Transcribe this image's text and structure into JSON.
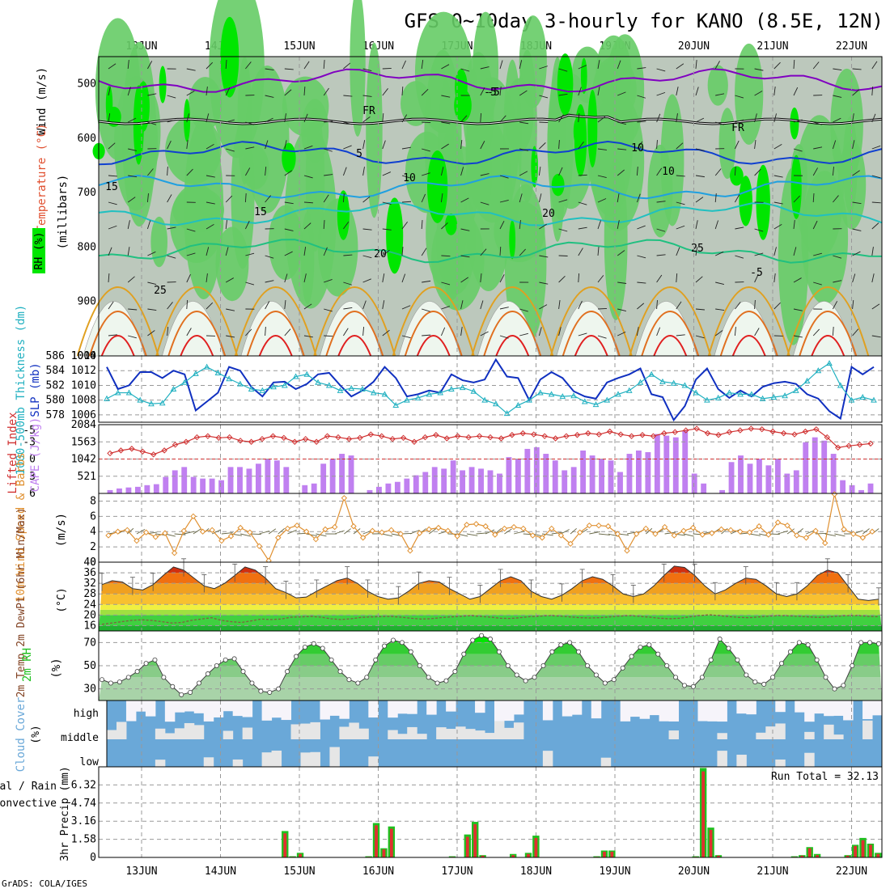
{
  "title": "GFS 0~10day 3-hourly for KANO (8.5E, 12N)",
  "footer": "GrADS: COLA/IGES",
  "days": [
    "13JUN",
    "14JUN",
    "15JUN",
    "16JUN",
    "17JUN",
    "18JUN",
    "19JUN",
    "20JUN",
    "21JUN",
    "22JUN"
  ],
  "colors": {
    "rh_dark": "#00e600",
    "rh_mid": "#66cc66",
    "rh_light": "#a8d3a8",
    "grey": "#bcc8bc",
    "pale": "#eef6ee",
    "purple": "#8000c0",
    "blue": "#1040d0",
    "lightblue": "#20a0e0",
    "teal": "#20c0c0",
    "green": "#20c080",
    "orange": "#e0a020",
    "darkorange": "#e07020",
    "red": "#e02020",
    "slp": "#1030c0",
    "thick": "#20b0c0",
    "li": "#d03030",
    "cape": "#c080f0",
    "wind": "#e09030",
    "cloud_blue": "#6aa8d8",
    "cloud_grey": "#e6e6e6",
    "cloud_white": "#f6f4fa",
    "precip_green": "#20c020",
    "precip_red": "#e03030"
  },
  "panels": {
    "profile": {
      "labels": {
        "wind": "Wind (m/s)",
        "temp": "Temperature (°C)",
        "rh": "RH (%)",
        "units": "(millibars)"
      },
      "contour_labels": [
        "-5",
        "FR",
        "FR",
        "-5",
        "5",
        "10",
        "10",
        "10",
        "15",
        "15",
        "20",
        "20",
        "25",
        "25",
        "-5"
      ]
    },
    "slp": {
      "label_left": "1000-500mb Thickness (dm)",
      "label_right": "SLP (mb)"
    },
    "cape": {
      "label_left": "Lifted Index",
      "label_right": "CAPE (J/kg)"
    },
    "wind10": {
      "label": "10m Wind Speed & Barbs",
      "units": "(m/s)"
    },
    "temp2m": {
      "label": "2m Temp 2m DewPt (6hr Min/Max)",
      "units": "(°C)"
    },
    "rh2m": {
      "label": "2m RH",
      "units": "(%)"
    },
    "cloud": {
      "label": "Cloud Cover",
      "units": "(%)",
      "levels": [
        "high",
        "middle",
        "low"
      ]
    },
    "precip": {
      "label_a": "Total / Rain",
      "label_b": "Convective",
      "ylabel": "3hr Precip (mm)",
      "run_total": "Run Total = 32.13"
    }
  },
  "chart_data": [
    {
      "type": "heatmap",
      "ylabel": "(millibars)",
      "y_ticks": [
        500,
        600,
        700,
        800,
        900,
        1000
      ],
      "ylim": [
        1000,
        450
      ],
      "x_categories": [
        "13JUN",
        "14JUN",
        "15JUN",
        "16JUN",
        "17JUN",
        "18JUN",
        "19JUN",
        "20JUN",
        "21JUN",
        "22JUN"
      ],
      "isotherm_labels_c": [
        -5,
        5,
        10,
        15,
        20,
        25
      ],
      "freezing_level_label": "FR"
    },
    {
      "type": "line",
      "series": [
        {
          "name": "SLP (mb)",
          "axis": "right",
          "ylim": [
            1005,
            1014
          ],
          "y_ticks": [
            1006,
            1008,
            1010,
            1012,
            1014
          ],
          "values": [
            1012.5,
            1009.5,
            1010,
            1011.8,
            1011.8,
            1011,
            1012,
            1011.5,
            1006.6,
            1007.8,
            1009,
            1012.5,
            1012,
            1009.8,
            1008.5,
            1010.4,
            1010.5,
            1009.5,
            1010.2,
            1011.5,
            1011.7,
            1010,
            1008.5,
            1009.3,
            1010.5,
            1012.5,
            1011,
            1008.5,
            1008.8,
            1009.3,
            1009,
            1011.5,
            1010.7,
            1010.4,
            1010.8,
            1013.5,
            1011.2,
            1011,
            1008,
            1010.8,
            1011.8,
            1011,
            1009.2,
            1008.5,
            1008.2,
            1010.4,
            1011,
            1011.5,
            1012.3,
            1008.8,
            1008.4,
            1005.3,
            1007.2,
            1010.8,
            1012.3,
            1009.5,
            1008.3,
            1009.3,
            1008.5,
            1009.8,
            1010.3,
            1010.5,
            1010.2,
            1008.8,
            1008.2,
            1006.5,
            1005.5,
            1012.5,
            1011.5,
            1012.5
          ]
        },
        {
          "name": "1000-500mb Thickness (dm)",
          "axis": "left",
          "ylim": [
            577,
            586
          ],
          "y_ticks": [
            578,
            580,
            582,
            584,
            586
          ],
          "values": [
            580.2,
            581,
            581,
            580,
            579.5,
            579.6,
            581.5,
            582.4,
            583.6,
            584.5,
            583.7,
            582.9,
            582.2,
            581.5,
            581.3,
            581.8,
            582,
            583.2,
            583.5,
            582.4,
            582,
            581.3,
            581.6,
            581.5,
            581,
            580.8,
            579.3,
            580,
            580.3,
            580.8,
            581,
            581.5,
            581.7,
            581.2,
            580,
            579.5,
            578.2,
            579.3,
            580,
            581,
            580.8,
            580.5,
            580.6,
            579.8,
            579.4,
            580,
            580.8,
            581.3,
            582.4,
            583.5,
            582.5,
            582.3,
            582,
            581,
            580,
            580.3,
            581,
            580.8,
            580.8,
            580.2,
            580.4,
            580.6,
            581.3,
            582.6,
            584,
            585,
            582,
            580,
            580.4,
            580
          ]
        }
      ]
    },
    {
      "type": "bar",
      "series": [
        {
          "name": "CAPE (J/kg)",
          "axis": "right",
          "ylim": [
            0,
            2084
          ],
          "y_ticks": [
            521,
            1042,
            1563,
            2084
          ],
          "values": [
            100,
            150,
            180,
            200,
            250,
            280,
            500,
            700,
            800,
            500,
            450,
            450,
            400,
            800,
            800,
            750,
            900,
            1050,
            1000,
            800,
            0,
            250,
            300,
            900,
            1050,
            1200,
            1150,
            0,
            100,
            200,
            300,
            350,
            450,
            550,
            650,
            800,
            750,
            1000,
            700,
            800,
            750,
            700,
            600,
            1100,
            1050,
            1350,
            1400,
            1200,
            1000,
            700,
            800,
            1300,
            1150,
            1050,
            1000,
            650,
            1200,
            1300,
            1250,
            1800,
            1750,
            1700,
            1900,
            600,
            300,
            0,
            100,
            950,
            1150,
            900,
            1050,
            850,
            1050,
            600,
            700,
            1550,
            1700,
            1600,
            1200,
            400,
            250,
            100,
            300
          ]
        },
        {
          "name": "Lifted Index",
          "axis": "left",
          "type": "line",
          "ylim": [
            6,
            -6
          ],
          "y_ticks": [
            -5,
            -3,
            0,
            3,
            6
          ],
          "values": [
            -1,
            -1.5,
            -1.8,
            -1.3,
            -0.8,
            -1.5,
            -2.5,
            -3,
            -3.8,
            -4,
            -3.7,
            -3.8,
            -3.2,
            -3,
            -3.5,
            -4,
            -3.7,
            -3,
            -3.5,
            -3,
            -4,
            -3.8,
            -3.5,
            -3.7,
            -4.3,
            -4,
            -3.5,
            -3.7,
            -3,
            -3.8,
            -4.2,
            -3.6,
            -4,
            -3.8,
            -4,
            -3.8,
            -3.6,
            -4.2,
            -4.5,
            -4.3,
            -4,
            -3.6,
            -4,
            -4.2,
            -4.5,
            -4.3,
            -4.8,
            -4.3,
            -4,
            -4.2,
            -4,
            -4.5,
            -4.7,
            -5,
            -5.3,
            -4.5,
            -4.2,
            -4.7,
            -5,
            -5.3,
            -5.2,
            -4.8,
            -4.5,
            -4.3,
            -4.8,
            -5.2,
            -3.8,
            -2,
            -2.3,
            -2.5,
            -2.7
          ]
        }
      ]
    },
    {
      "type": "line",
      "ylabel": "(m/s)",
      "ylim": [
        0,
        9
      ],
      "y_ticks": [
        0,
        2,
        4,
        6,
        8
      ],
      "series": [
        {
          "name": "10m Wind Speed",
          "values": [
            3.5,
            4,
            4.2,
            2.8,
            3.9,
            3.3,
            3.8,
            1.2,
            4.1,
            6,
            4,
            4.2,
            2.8,
            3.4,
            4.5,
            3.9,
            2.1,
            0.2,
            3.2,
            4.4,
            4.8,
            4,
            3,
            4.3,
            4.6,
            8.4,
            4.7,
            3.2,
            4.1,
            3.9,
            4.2,
            3.7,
            1.5,
            3.8,
            4.3,
            4.5,
            4.1,
            3.4,
            4.9,
            5,
            4.7,
            3.6,
            4.4,
            4.6,
            4.4,
            3.5,
            3.2,
            4.4,
            3.5,
            2.4,
            3.9,
            4.8,
            4.8,
            4.7,
            3.7,
            1.5,
            3.7,
            4.4,
            3.7,
            4.6,
            3.5,
            4.1,
            4.5,
            3.6,
            3.8,
            4.3,
            4.2,
            4,
            3.9,
            4.7,
            3.6,
            5.2,
            4.8,
            3.5,
            3.2,
            4.1,
            2.5,
            8.9,
            4.3,
            3.7,
            3.2,
            4
          ]
        }
      ]
    },
    {
      "type": "area",
      "ylabel": "(°C)",
      "ylim": [
        14,
        40
      ],
      "y_ticks": [
        16,
        20,
        24,
        28,
        32,
        36,
        40
      ],
      "series": [
        {
          "name": "2m Temp",
          "values": [
            31.5,
            33,
            32.5,
            30,
            29.5,
            31.5,
            35,
            38.2,
            37,
            34,
            31,
            30,
            32,
            35,
            38.2,
            37,
            34,
            30,
            28.5,
            26.5,
            26.8,
            29,
            31,
            33,
            34,
            32,
            29,
            27,
            26,
            26.5,
            29,
            32,
            33,
            32.5,
            30,
            28,
            26,
            27,
            30,
            33,
            34.5,
            33,
            29,
            27,
            26,
            27.5,
            30,
            33,
            34.5,
            33.5,
            31,
            28,
            27,
            28,
            31,
            35,
            38.5,
            38,
            35,
            31,
            28,
            29.5,
            32,
            34,
            33.5,
            31,
            28,
            27,
            28,
            31,
            35,
            37,
            36,
            31,
            26,
            25.5,
            26
          ]
        },
        {
          "name": "2m DewPt",
          "values": [
            16.5,
            17,
            17.5,
            18,
            18.2,
            18,
            17.5,
            17,
            17.2,
            18,
            18.5,
            19,
            18,
            17.5,
            17.2,
            17.8,
            18.5,
            18.3,
            18.5,
            19.2,
            19.3,
            19.5,
            19.2,
            18.6,
            18.3,
            18.6,
            19.1,
            19.3,
            19.4,
            19.5,
            19.2,
            18.8,
            18.5,
            18.6,
            19,
            19.3,
            19.5,
            19.8,
            19.5,
            19.2,
            18.8,
            18.7,
            19,
            19.4,
            19.6,
            19.8,
            19.6,
            19.3,
            19,
            18.9,
            19,
            19.3,
            19.6,
            19.8,
            19.5,
            19.2,
            18.8,
            18.6,
            18.8,
            19.3,
            19.8,
            20.1,
            19.8,
            19.4,
            19.1,
            19,
            19.3,
            19.6,
            19.8,
            19.7,
            19.5,
            19.3,
            19.1,
            19.3,
            19.6,
            19.8,
            19.8,
            19.5,
            19.4
          ]
        }
      ]
    },
    {
      "type": "area",
      "ylabel": "(%)",
      "ylim": [
        20,
        80
      ],
      "y_ticks": [
        30,
        50,
        70
      ],
      "series": [
        {
          "name": "2m RH",
          "values": [
            38,
            35,
            36,
            40,
            45,
            52,
            55,
            40,
            32,
            25,
            27,
            35,
            43,
            50,
            55,
            56,
            45,
            35,
            28,
            27,
            30,
            45,
            58,
            66,
            69,
            65,
            55,
            45,
            38,
            35,
            40,
            55,
            67,
            72,
            70,
            62,
            50,
            40,
            35,
            37,
            45,
            60,
            72,
            76,
            73,
            62,
            50,
            42,
            37,
            40,
            50,
            62,
            68,
            70,
            62,
            50,
            42,
            35,
            38,
            48,
            58,
            66,
            68,
            60,
            50,
            40,
            33,
            32,
            40,
            55,
            73,
            65,
            55,
            42,
            36,
            34,
            40,
            52,
            62,
            70,
            68,
            55,
            40,
            30,
            33,
            50,
            70,
            70,
            69
          ]
        }
      ]
    },
    {
      "type": "heatmap",
      "ylabel": "(%)",
      "levels": [
        "high",
        "middle",
        "low"
      ]
    },
    {
      "type": "bar",
      "ylabel": "3hr Precip (mm)",
      "ylim": [
        0,
        7.9
      ],
      "y_ticks": [
        0,
        1.58,
        3.16,
        4.74,
        6.32
      ],
      "annotation": "Run Total = 32.13",
      "series": [
        {
          "name": "Total / Rain",
          "values": [
            0,
            0,
            0,
            0,
            0,
            0,
            0,
            0,
            0,
            0,
            0,
            0,
            0,
            0,
            0,
            0,
            0,
            0,
            0,
            0,
            0,
            0,
            0,
            0,
            2.3,
            0.1,
            0.4,
            0,
            0,
            0,
            0,
            0,
            0,
            0,
            0,
            0.1,
            3,
            0.8,
            2.7,
            0,
            0,
            0,
            0,
            0,
            0,
            0,
            0.1,
            0,
            2,
            3.1,
            0.2,
            0,
            0,
            0,
            0.3,
            0,
            0.4,
            1.9,
            0,
            0,
            0,
            0,
            0,
            0,
            0,
            0.1,
            0.6,
            0.6,
            0,
            0,
            0,
            0,
            0,
            0,
            0,
            0,
            0,
            0,
            0.1,
            7.8,
            2.6,
            0.2,
            0,
            0,
            0,
            0,
            0,
            0,
            0,
            0,
            0,
            0.1,
            0.2,
            0.9,
            0.3,
            0,
            0,
            0,
            0.2,
            1.1,
            1.7,
            1.2,
            0.4
          ]
        },
        {
          "name": "Convective",
          "values": [
            0,
            0,
            0,
            0,
            0,
            0,
            0,
            0,
            0,
            0,
            0,
            0,
            0,
            0,
            0,
            0,
            0,
            0,
            0,
            0,
            0,
            0,
            0,
            0,
            2.1,
            0.05,
            0.3,
            0,
            0,
            0,
            0,
            0,
            0,
            0,
            0,
            0.05,
            2.8,
            0.7,
            2.5,
            0,
            0,
            0,
            0,
            0,
            0,
            0,
            0.05,
            0,
            1.8,
            2.9,
            0.15,
            0,
            0,
            0,
            0.2,
            0,
            0.3,
            1.7,
            0,
            0,
            0,
            0,
            0,
            0,
            0,
            0.05,
            0.5,
            0.5,
            0,
            0,
            0,
            0,
            0,
            0,
            0,
            0,
            0,
            0,
            0.05,
            7.5,
            2.4,
            0.15,
            0,
            0,
            0,
            0,
            0,
            0,
            0,
            0,
            0,
            0.05,
            0.15,
            0.8,
            0.2,
            0,
            0,
            0,
            0.15,
            1,
            1.5,
            1.1,
            0.3
          ]
        }
      ]
    }
  ]
}
